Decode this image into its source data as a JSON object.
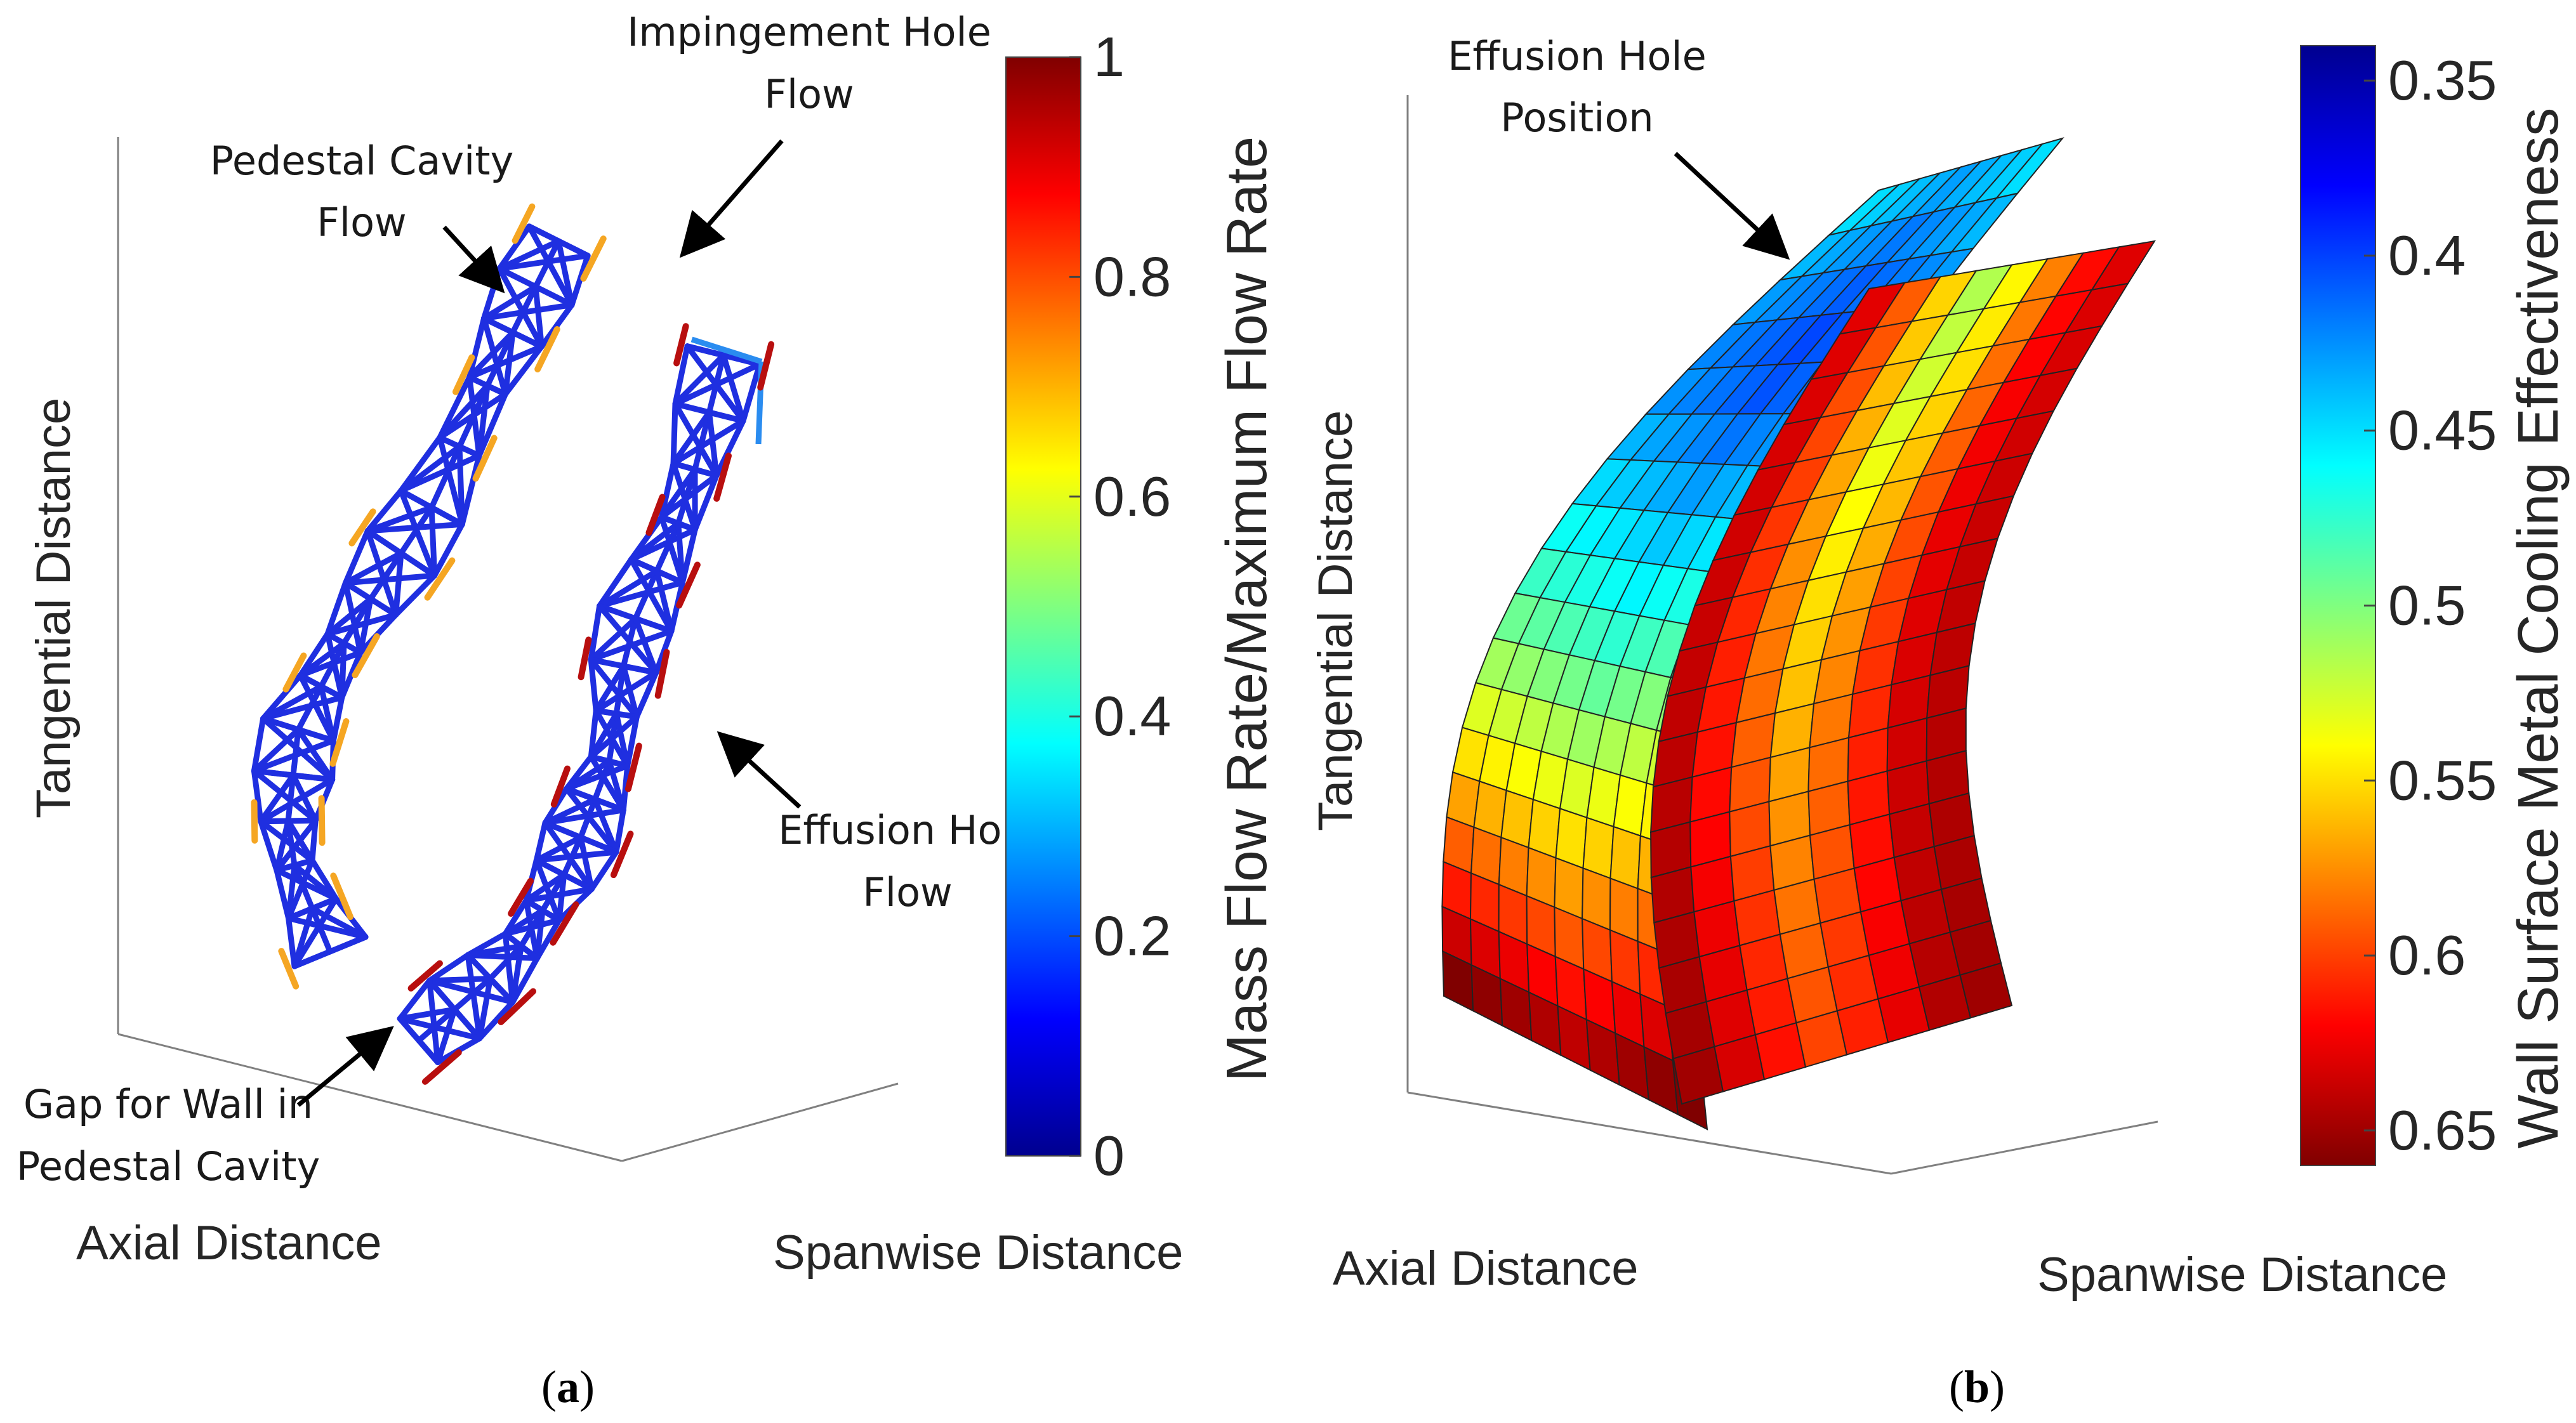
{
  "chart_data": [
    {
      "type": "3d-network",
      "panel": "a",
      "axes": {
        "x_label": "Axial Distance",
        "y_label": "Spanwise Distance",
        "z_label": "Tangential Distance"
      },
      "colorbar": {
        "label": "Mass Flow Rate/Maximum Flow Rate",
        "range": [
          0,
          1
        ],
        "ticks": [
          0,
          0.2,
          0.4,
          0.6,
          0.8,
          1
        ],
        "tick_labels": [
          "0",
          "0.2",
          "0.4",
          "0.6",
          "0.8",
          "1"
        ],
        "colormap": "jet"
      },
      "annotations": [
        {
          "lines": [
            "Impingement Hole",
            "Flow"
          ]
        },
        {
          "lines": [
            "Pedestal Cavity",
            "Flow"
          ]
        },
        {
          "lines": [
            "Effusion Hole",
            "Flow"
          ]
        },
        {
          "lines": [
            "Gap for Wall in",
            "Pedestal Cavity"
          ]
        }
      ],
      "series": [
        {
          "name": "Pedestal Cavity Flow",
          "value": 0.15,
          "color": "#1f2fe0"
        },
        {
          "name": "Impingement Hole Flow",
          "value": 0.7,
          "color": "#f5a623"
        },
        {
          "name": "Effusion Hole Flow",
          "value": 0.95,
          "color": "#b80f0f"
        }
      ]
    },
    {
      "type": "3d-surface",
      "panel": "b",
      "axes": {
        "x_label": "Axial Distance",
        "y_label": "Spanwise Distance",
        "z_label": "Tangential Distance"
      },
      "colorbar": {
        "label": "Wall Surface Metal Cooling Effectiveness",
        "range": [
          0.34,
          0.66
        ],
        "ticks": [
          0.35,
          0.4,
          0.45,
          0.5,
          0.55,
          0.6,
          0.65
        ],
        "tick_labels": [
          "0.35",
          "0.4",
          "0.45",
          "0.5",
          "0.55",
          "0.6",
          "0.65"
        ],
        "colormap": "jet-reversed"
      },
      "annotations": [
        {
          "lines": [
            "Effusion Hole",
            "Position"
          ]
        }
      ]
    }
  ],
  "panels": {
    "a": {
      "open": "(",
      "letter": "a",
      "close": ")"
    },
    "b": {
      "open": "(",
      "letter": "b",
      "close": ")"
    }
  },
  "colors": {
    "network_blue": "#1f2fe0",
    "network_light_blue": "#2a8cf0",
    "impingement_orange": "#f5a623",
    "effusion_red": "#b80f0f",
    "axis_gray": "#808080",
    "text": "#262626"
  }
}
